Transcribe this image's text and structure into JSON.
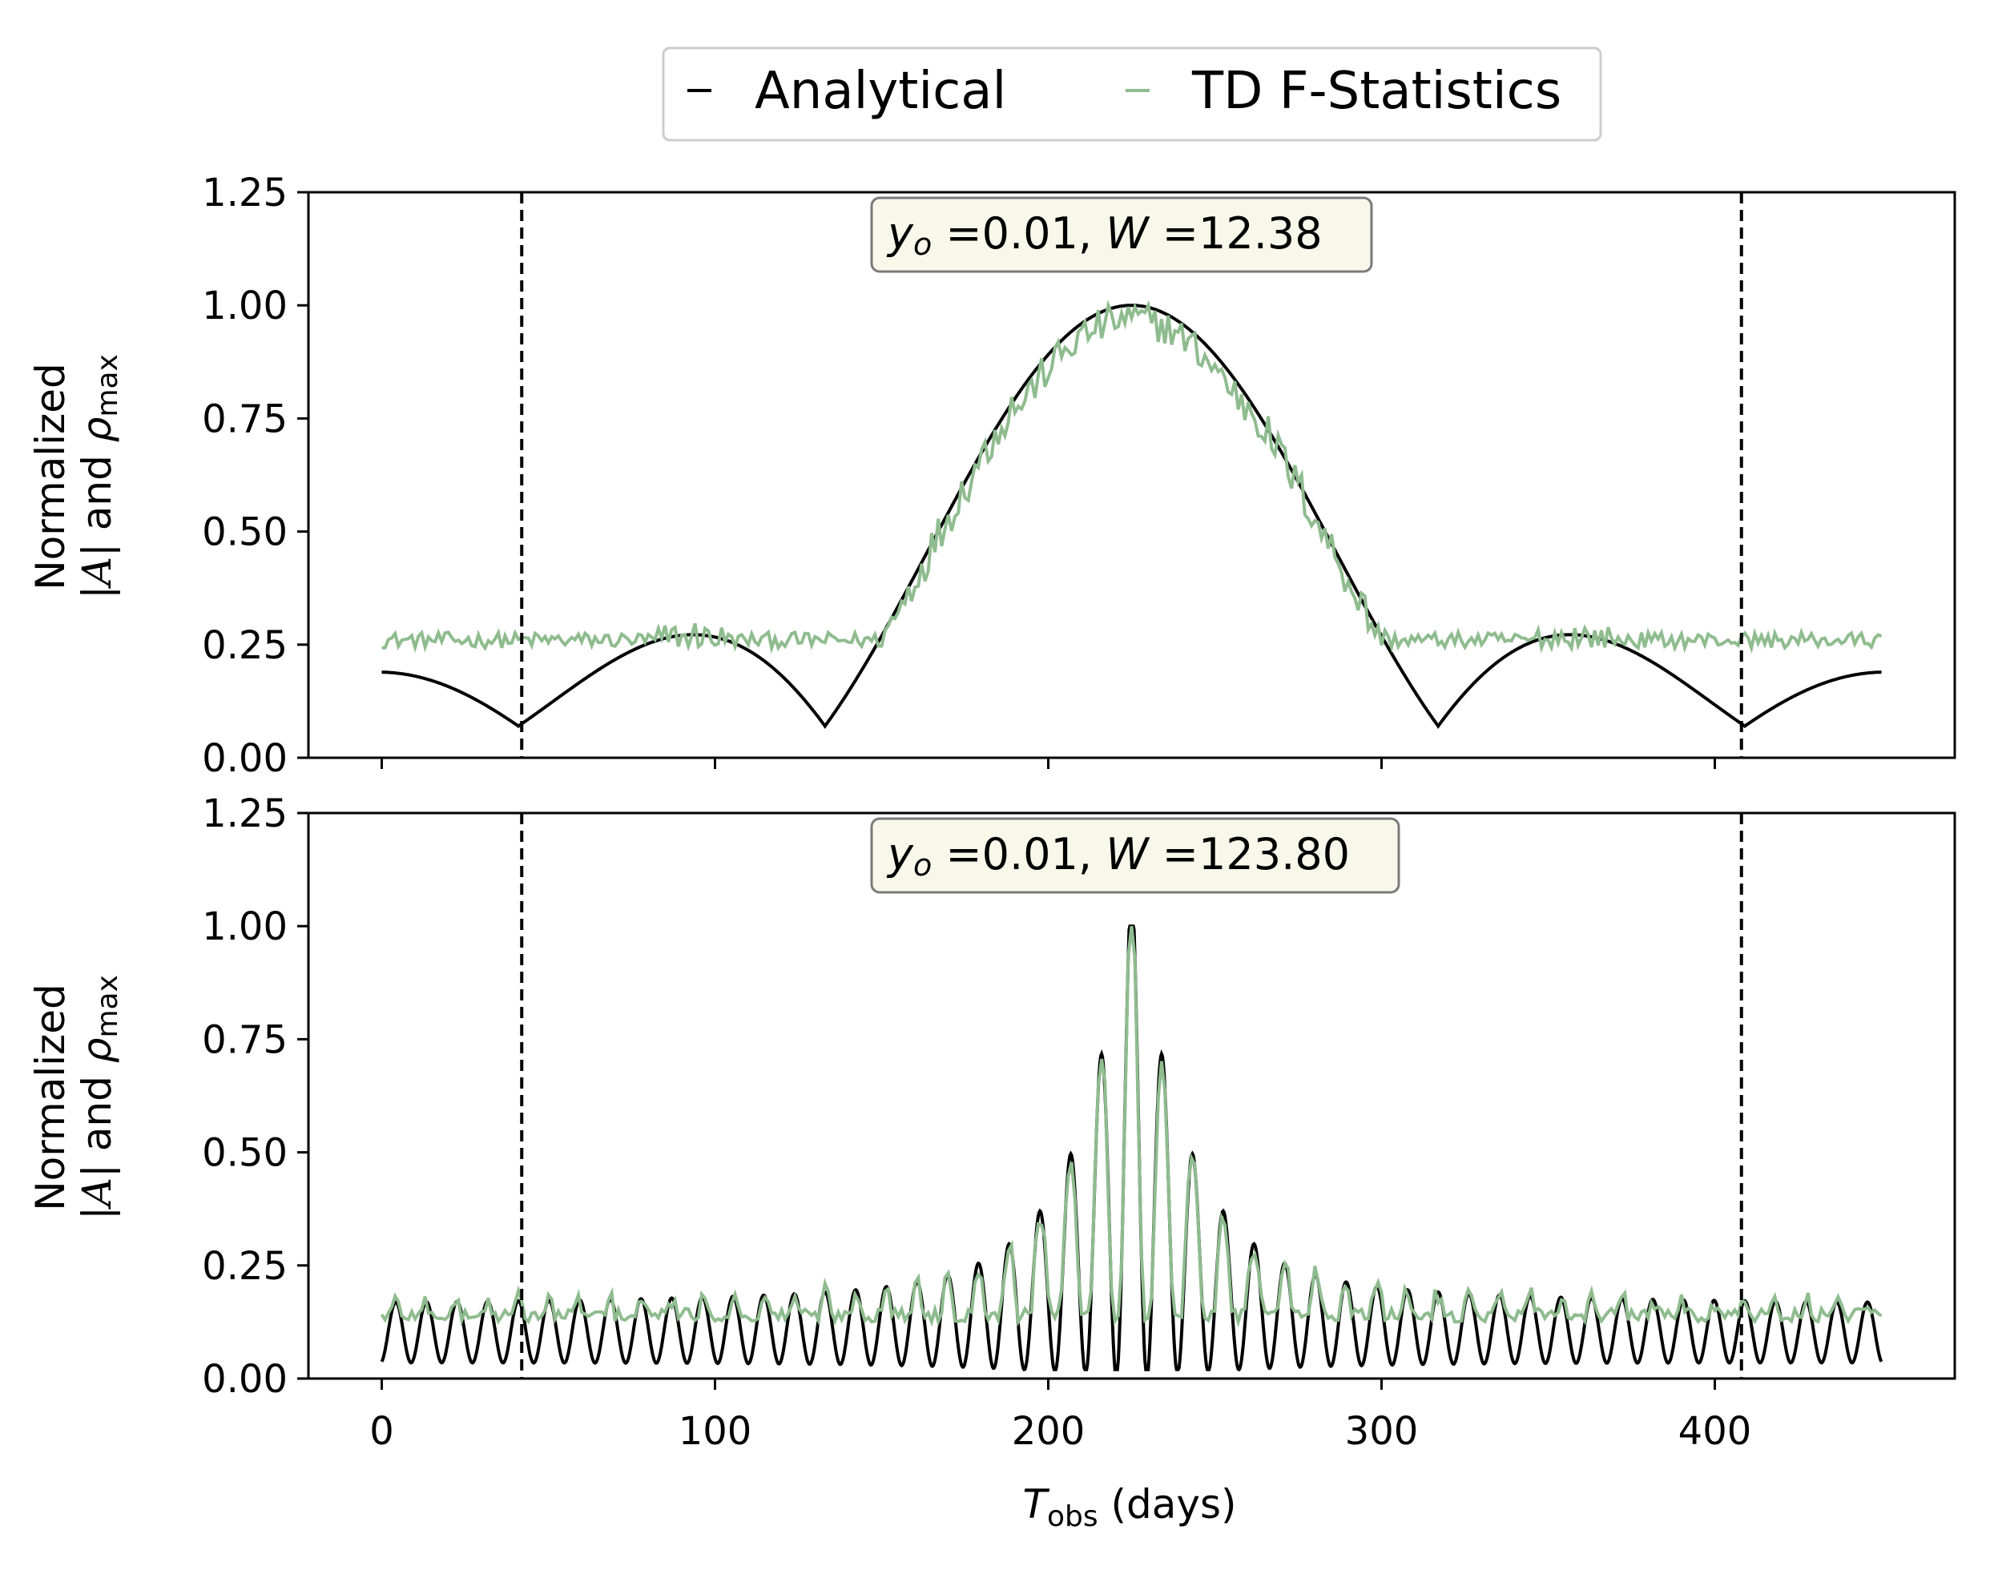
{
  "legend": {
    "entries": [
      {
        "label": "Analytical",
        "color": "#000000"
      },
      {
        "label": "TD F-Statistics",
        "color": "#8fbc8f"
      }
    ]
  },
  "colors": {
    "analytical": "#000000",
    "fstat": "#8fbc8f",
    "anno_face": "#f7f7ea",
    "anno_edge": "#7a7a7a"
  },
  "chart_data": [
    {
      "type": "line",
      "panel": "top",
      "annotation": {
        "y_label": "y",
        "y_sub": "o",
        "y_value": " =0.01, ",
        "w_label": "W",
        "w_value": " =12.38"
      },
      "ylabel_line1": "Normalized",
      "ylabel_line2_a": "|",
      "ylabel_line2_b": "A",
      "ylabel_line2_c": "| and ",
      "ylabel_line2_rho": "ρ",
      "ylabel_line2_sub": "max",
      "xlim": [
        -22,
        472
      ],
      "ylim": [
        0,
        1.25
      ],
      "yticks": [
        "0.00",
        "0.25",
        "0.50",
        "0.75",
        "1.00",
        "1.25"
      ],
      "ytick_values": [
        0,
        0.25,
        0.5,
        0.75,
        1.0,
        1.25
      ],
      "vlines": [
        42,
        408
      ],
      "series": [
        {
          "name": "Analytical",
          "model": "lens",
          "W": 12.38,
          "baseline": 0.0
        },
        {
          "name": "TD F-Statistics",
          "model": "noisy-lens",
          "floor": 0.25
        }
      ],
      "x_range": [
        0,
        450
      ],
      "peak_x": 225
    },
    {
      "type": "line",
      "panel": "bottom",
      "annotation": {
        "y_label": "y",
        "y_sub": "o",
        "y_value": " =0.01, ",
        "w_label": "W",
        "w_value": " =123.80"
      },
      "ylabel_line1": "Normalized",
      "ylabel_line2_a": "|",
      "ylabel_line2_b": "A",
      "ylabel_line2_c": "| and ",
      "ylabel_line2_rho": "ρ",
      "ylabel_line2_sub": "max",
      "xlim": [
        -22,
        472
      ],
      "ylim": [
        0,
        1.25
      ],
      "yticks": [
        "0.00",
        "0.25",
        "0.50",
        "0.75",
        "1.00",
        "1.25"
      ],
      "ytick_values": [
        0,
        0.25,
        0.5,
        0.75,
        1.0,
        1.25
      ],
      "xticks": [
        "0",
        "100",
        "200",
        "300",
        "400"
      ],
      "xtick_values": [
        0,
        100,
        200,
        300,
        400
      ],
      "xlabel_T": "T",
      "xlabel_sub": "obs",
      "xlabel_rest": " (days)",
      "vlines": [
        42,
        408
      ],
      "series": [
        {
          "name": "Analytical",
          "model": "lens",
          "W": 123.8
        },
        {
          "name": "TD F-Statistics",
          "model": "noisy-lens",
          "floor": 0.13
        }
      ],
      "x_range": [
        0,
        450
      ],
      "peak_x": 225
    }
  ]
}
